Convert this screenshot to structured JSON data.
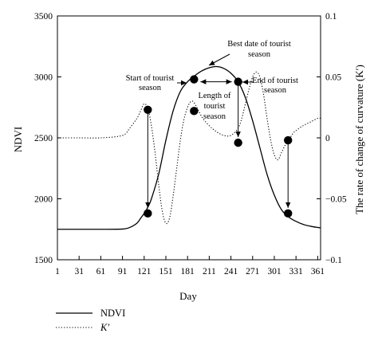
{
  "chart_data": {
    "type": "line",
    "xlabel": "Day",
    "ylabel_left": "NDVI",
    "ylabel_right": "The rate of change of curvature (K′)",
    "xlim": [
      1,
      365
    ],
    "ylim_left": [
      1500,
      3500
    ],
    "ylim_right": [
      -0.1,
      0.1
    ],
    "x_ticks": [
      1,
      31,
      61,
      91,
      121,
      151,
      181,
      211,
      241,
      271,
      301,
      331,
      361
    ],
    "y_left_ticks": [
      1500,
      2000,
      2500,
      3000,
      3500
    ],
    "y_right_ticks": [
      -0.1,
      -0.05,
      0,
      0.05,
      0.1
    ],
    "y_right_tick_labels": [
      "−0.1",
      "−0.05",
      "0",
      "0.05",
      "0.1"
    ],
    "series": [
      {
        "name": "NDVI",
        "axis": "left",
        "style": "solid",
        "x": [
          1,
          31,
          61,
          91,
          101,
          111,
          116,
          121,
          126,
          131,
          141,
          151,
          161,
          171,
          181,
          191,
          201,
          211,
          221,
          231,
          241,
          251,
          261,
          271,
          281,
          291,
          301,
          311,
          321,
          331,
          341,
          351,
          361,
          365
        ],
        "y": [
          1750,
          1750,
          1750,
          1752,
          1765,
          1800,
          1840,
          1880,
          1930,
          2000,
          2200,
          2480,
          2720,
          2880,
          2960,
          3010,
          3050,
          3075,
          3085,
          3070,
          3030,
          2960,
          2830,
          2640,
          2420,
          2200,
          2030,
          1910,
          1850,
          1815,
          1790,
          1775,
          1765,
          1762
        ]
      },
      {
        "name": "K′",
        "axis": "right",
        "style": "dotted",
        "x": [
          1,
          31,
          61,
          91,
          101,
          111,
          116,
          121,
          126,
          131,
          136,
          141,
          146,
          151,
          156,
          161,
          166,
          171,
          176,
          181,
          186,
          191,
          201,
          211,
          221,
          231,
          241,
          251,
          256,
          261,
          266,
          271,
          276,
          281,
          286,
          291,
          296,
          301,
          306,
          311,
          316,
          321,
          326,
          331,
          341,
          351,
          361,
          365
        ],
        "y": [
          0,
          0,
          0,
          0.002,
          0.008,
          0.016,
          0.022,
          0.028,
          0.024,
          0.01,
          -0.012,
          -0.038,
          -0.06,
          -0.07,
          -0.066,
          -0.048,
          -0.025,
          -0.002,
          0.015,
          0.025,
          0.03,
          0.028,
          0.017,
          0.01,
          0.005,
          0.002,
          0.002,
          0.008,
          0.016,
          0.028,
          0.04,
          0.05,
          0.054,
          0.05,
          0.036,
          0.016,
          -0.002,
          -0.014,
          -0.018,
          -0.012,
          -0.006,
          -0.002,
          0.003,
          0.006,
          0.01,
          0.013,
          0.016,
          0.016
        ]
      }
    ],
    "markers": [
      {
        "name": "ndvi-start-marker",
        "x": 126,
        "y": 1880,
        "axis": "left"
      },
      {
        "name": "kprime-start-marker",
        "x": 126,
        "y": 2730,
        "axis": "left"
      },
      {
        "name": "ndvi-season-start-marker",
        "x": 190,
        "y": 2980,
        "axis": "left"
      },
      {
        "name": "kprime-season-start-marker",
        "x": 190,
        "y": 2720,
        "axis": "left"
      },
      {
        "name": "ndvi-season-end-marker",
        "x": 251,
        "y": 2960,
        "axis": "left"
      },
      {
        "name": "kprime-season-end-marker",
        "x": 251,
        "y": 2460,
        "axis": "left"
      },
      {
        "name": "ndvi-end-marker",
        "x": 320,
        "y": 1880,
        "axis": "left"
      },
      {
        "name": "kprime-end-marker",
        "x": 320,
        "y": 2480,
        "axis": "left"
      }
    ],
    "vertical_arrows": [
      {
        "name": "start-vertical-arrow",
        "x": 126,
        "from": 2730,
        "to": 1880
      },
      {
        "name": "season-end-vertical-arrow",
        "x": 251,
        "from": 2960,
        "to": 2460
      },
      {
        "name": "end-vertical-arrow",
        "x": 320,
        "from": 2480,
        "to": 1880
      }
    ],
    "season_span": {
      "from": 190,
      "to": 251,
      "y": 2960
    },
    "annotations": {
      "best_date": [
        "Best date of tourist",
        "season"
      ],
      "start": [
        "Start of tourist",
        "season"
      ],
      "length": [
        "Length of",
        "tourist",
        "season"
      ],
      "end": [
        "End of tourist",
        "season"
      ]
    },
    "legend": [
      {
        "label": "NDVI",
        "style": "solid"
      },
      {
        "label": "K′",
        "style": "dotted"
      }
    ],
    "grid": false
  }
}
